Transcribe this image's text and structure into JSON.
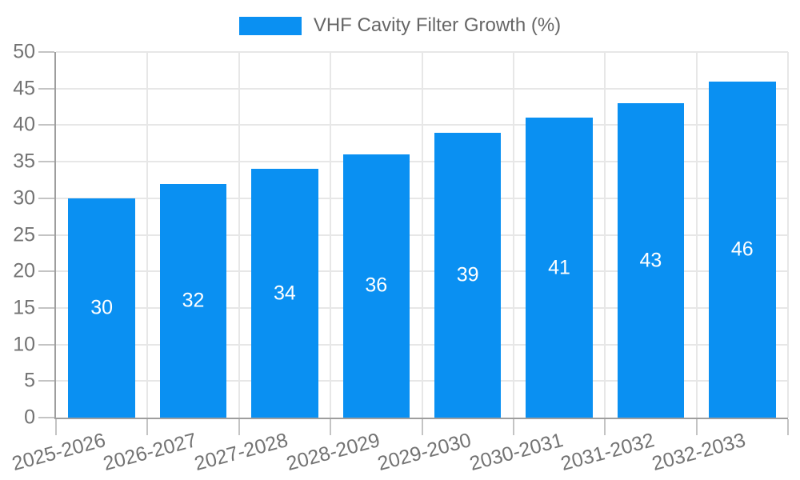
{
  "chart_data": {
    "type": "bar",
    "title": "VHF Cavity Filter Growth (%)",
    "series_label": "VHF Cavity Filter Growth (%)",
    "categories": [
      "2025-2026",
      "2026-2027",
      "2027-2028",
      "2028-2029",
      "2029-2030",
      "2030-2031",
      "2031-2032",
      "2032-2033"
    ],
    "values": [
      30,
      32,
      34,
      36,
      39,
      41,
      43,
      46
    ],
    "xlabel": "",
    "ylabel": "",
    "ylim": [
      0,
      50
    ],
    "ytick_step": 5,
    "grid": true,
    "legend_position": "top",
    "value_labels": "inside-center",
    "x_label_rotation_deg": -15,
    "colors": {
      "bar": "#0a90f2",
      "value_label": "#ffffff",
      "axis_line": "#9e9e9e",
      "gridline": "#e7e7e7",
      "tick_mark": "#c4c4c4",
      "tick_label": "#737373",
      "legend_label": "#666666"
    }
  }
}
